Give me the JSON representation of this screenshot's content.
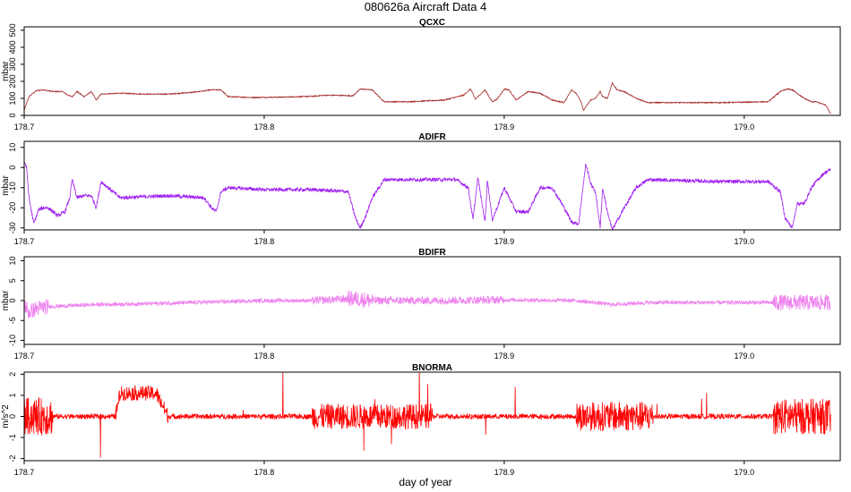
{
  "figure": {
    "title": "080626a   Aircraft Data 4",
    "xlabel": "day of year"
  },
  "chart_data": [
    {
      "type": "line",
      "title": "QCXC",
      "ylabel": "mbar",
      "color": "#a52a2a",
      "xlim": [
        178.7,
        179.04
      ],
      "ylim": [
        0,
        520
      ],
      "xticks": [
        178.7,
        178.8,
        178.9,
        179.0
      ],
      "xtick_labels": [
        "178.7",
        "178.8",
        "178.9",
        "179.0"
      ],
      "yticks": [
        0,
        100,
        200,
        300,
        400,
        500
      ],
      "ytick_labels": [
        "0",
        "100",
        "200",
        "300",
        "400",
        "500"
      ],
      "noise": 3,
      "x": [
        178.7,
        178.702,
        178.705,
        178.708,
        178.712,
        178.716,
        178.718,
        178.72,
        178.722,
        178.725,
        178.728,
        178.73,
        178.732,
        178.74,
        178.75,
        178.76,
        178.77,
        178.778,
        178.782,
        178.785,
        178.795,
        178.81,
        178.82,
        178.825,
        178.83,
        178.837,
        178.84,
        178.845,
        178.85,
        178.86,
        178.875,
        178.883,
        178.886,
        178.888,
        178.892,
        178.895,
        178.897,
        178.9,
        178.902,
        178.905,
        178.91,
        178.915,
        178.92,
        178.925,
        178.928,
        178.93,
        178.932,
        178.933,
        178.936,
        178.938,
        178.94,
        178.941,
        178.943,
        178.945,
        178.947,
        178.95,
        178.955,
        178.96,
        178.97,
        178.99,
        179.01,
        179.015,
        179.018,
        179.02,
        179.025,
        179.028,
        179.03,
        179.034,
        179.036
      ],
      "y": [
        30,
        110,
        145,
        150,
        140,
        140,
        120,
        110,
        140,
        110,
        140,
        90,
        125,
        130,
        125,
        125,
        135,
        150,
        150,
        110,
        105,
        108,
        112,
        118,
        118,
        115,
        155,
        150,
        80,
        80,
        90,
        118,
        155,
        95,
        150,
        80,
        95,
        155,
        150,
        90,
        140,
        130,
        90,
        75,
        150,
        130,
        80,
        30,
        90,
        100,
        140,
        110,
        100,
        190,
        150,
        140,
        100,
        75,
        75,
        75,
        80,
        140,
        155,
        150,
        100,
        80,
        80,
        60,
        10
      ]
    },
    {
      "type": "line",
      "title": "ADIFR",
      "ylabel": "mbar",
      "color": "#a020f0",
      "xlim": [
        178.7,
        179.04
      ],
      "ylim": [
        -31,
        13
      ],
      "xticks": [
        178.7,
        178.8,
        178.9,
        179.0
      ],
      "xtick_labels": [
        "178.7",
        "178.8",
        "178.9",
        "179.0"
      ],
      "yticks": [
        -30,
        -20,
        -10,
        0,
        10
      ],
      "ytick_labels": [
        "-30",
        "-20",
        "-10",
        "0",
        "10"
      ],
      "noise": 0.9,
      "x": [
        178.7,
        178.701,
        178.702,
        178.704,
        178.706,
        178.708,
        178.71,
        178.714,
        178.717,
        178.719,
        178.72,
        178.722,
        178.725,
        178.728,
        178.73,
        178.732,
        178.74,
        178.76,
        178.775,
        178.778,
        178.78,
        178.782,
        178.785,
        178.8,
        178.82,
        178.835,
        178.838,
        178.84,
        178.842,
        178.845,
        178.85,
        178.86,
        178.88,
        178.885,
        178.887,
        178.889,
        178.892,
        178.893,
        178.895,
        178.897,
        178.9,
        178.905,
        178.91,
        178.915,
        178.92,
        178.925,
        178.928,
        178.931,
        178.933,
        178.934,
        178.936,
        178.938,
        178.94,
        178.941,
        178.943,
        178.945,
        178.95,
        178.955,
        178.96,
        178.99,
        179.01,
        179.015,
        179.017,
        179.02,
        179.022,
        179.025,
        179.028,
        179.03,
        179.033,
        179.036
      ],
      "y": [
        3,
        0,
        -15,
        -28,
        -21,
        -20,
        -20,
        -24,
        -22,
        -15,
        -6,
        -15,
        -14,
        -14,
        -20,
        -7,
        -15,
        -14,
        -15,
        -20,
        -22,
        -12,
        -10,
        -11,
        -11,
        -12,
        -25,
        -30,
        -25,
        -15,
        -6,
        -6,
        -6,
        -10,
        -26,
        -5,
        -27,
        -6,
        -26,
        -20,
        -10,
        -22,
        -22,
        -10,
        -10,
        -20,
        -27,
        -28,
        -8,
        2,
        -8,
        -12,
        -30,
        -10,
        -22,
        -31,
        -20,
        -10,
        -6,
        -7,
        -7,
        -12,
        -25,
        -30,
        -18,
        -18,
        -10,
        -7,
        -3,
        -1
      ]
    },
    {
      "type": "line",
      "title": "BDIFR",
      "ylabel": "mbar",
      "color": "#ee82ee",
      "xlim": [
        178.7,
        179.04
      ],
      "ylim": [
        -11,
        11
      ],
      "xticks": [
        178.7,
        178.8,
        178.9,
        179.0
      ],
      "xtick_labels": [
        "178.7",
        "178.8",
        "178.9",
        "179.0"
      ],
      "yticks": [
        -10,
        -5,
        0,
        5,
        10
      ],
      "ytick_labels": [
        "-10",
        "-5",
        "0",
        "5",
        "10"
      ],
      "noise": 0.5,
      "x": [
        178.7,
        178.702,
        178.705,
        178.71,
        178.73,
        178.75,
        178.77,
        178.8,
        178.82,
        178.838,
        178.845,
        178.87,
        178.9,
        178.93,
        178.945,
        178.96,
        179.0,
        179.015,
        179.036
      ],
      "y": [
        -1,
        -3,
        -2,
        -1.5,
        -1,
        -0.8,
        -0.5,
        0,
        0,
        0.5,
        0,
        0,
        0.2,
        0,
        -1,
        -0.5,
        -0.5,
        -0.5,
        -0.5
      ]
    },
    {
      "type": "line",
      "title": "BNORMA",
      "ylabel": "m/s^2",
      "color": "#ff0000",
      "xlim": [
        178.7,
        179.04
      ],
      "ylim": [
        -2.1,
        2.1
      ],
      "xticks": [
        178.7,
        178.8,
        178.9,
        179.0
      ],
      "xtick_labels": [
        "178.7",
        "178.8",
        "178.9",
        "179.0"
      ],
      "yticks": [
        -2,
        -1,
        0,
        1,
        2
      ],
      "ytick_labels": [
        "-2",
        "-1",
        "0",
        "1",
        "2"
      ],
      "noise": 0.12,
      "x": [
        178.7,
        178.71,
        178.738,
        178.74,
        178.755,
        178.76,
        178.78,
        178.835,
        178.85,
        178.935,
        178.955,
        178.96,
        179.015,
        179.036
      ],
      "y": [
        0,
        0,
        0,
        1.1,
        1.1,
        0,
        0,
        0,
        0,
        0,
        0,
        0,
        0,
        0
      ]
    }
  ]
}
